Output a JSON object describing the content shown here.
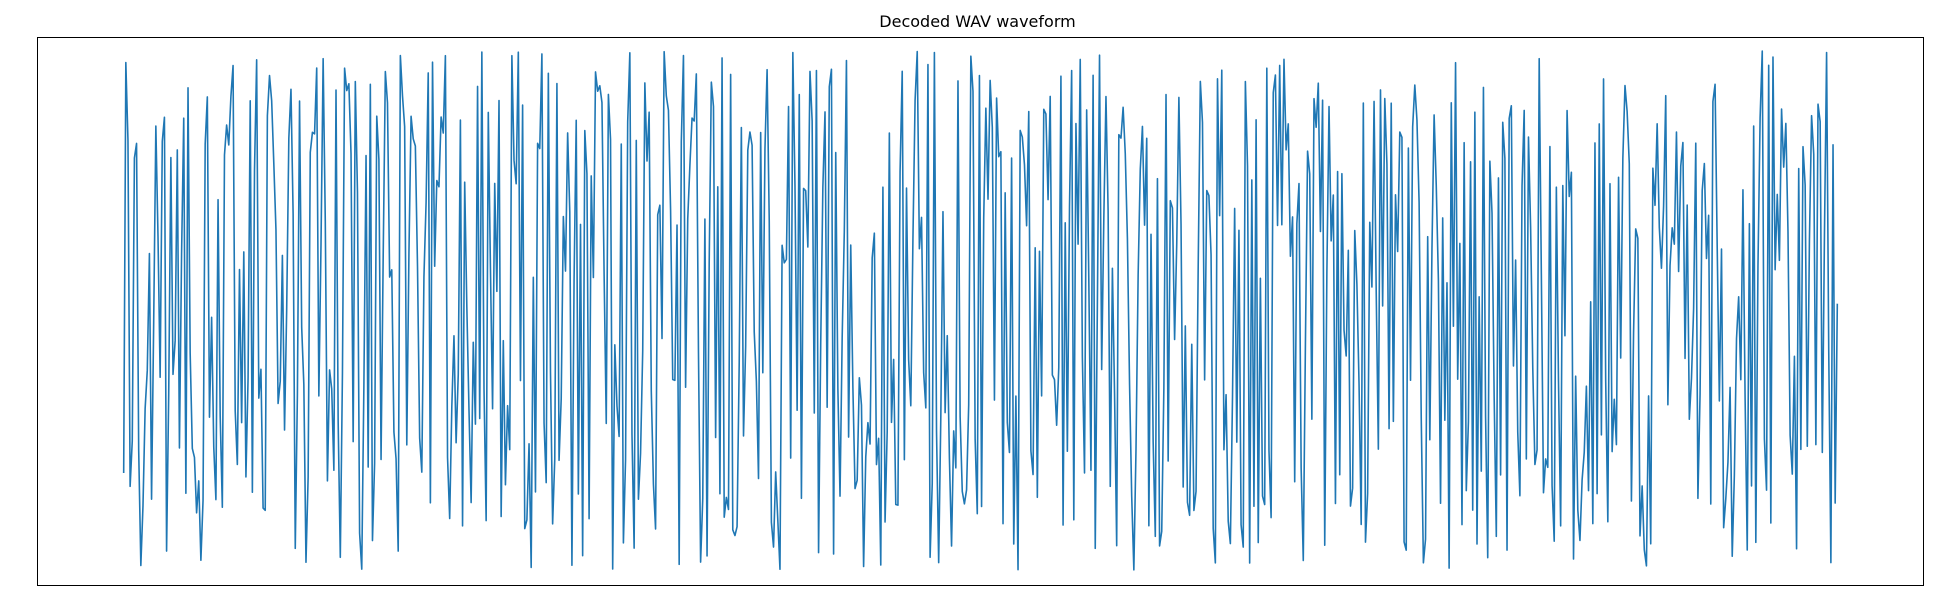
{
  "chart_data": {
    "type": "line",
    "title": "Decoded WAV waveform",
    "xlabel": "",
    "ylabel": "",
    "ylim": [
      -1.05,
      1.05
    ],
    "xlim": [
      -0.05,
      1.05
    ],
    "axis_ticks_visible": false,
    "grid": false,
    "series": [
      {
        "color": "#1f77b4",
        "samples_count": 800,
        "x_range": [
          0,
          1
        ],
        "y_range": [
          -1,
          1
        ],
        "start_value": -0.62,
        "end_value": 0.03,
        "description": "dense pseudo-random oscillation spanning the full amplitude range"
      }
    ]
  }
}
